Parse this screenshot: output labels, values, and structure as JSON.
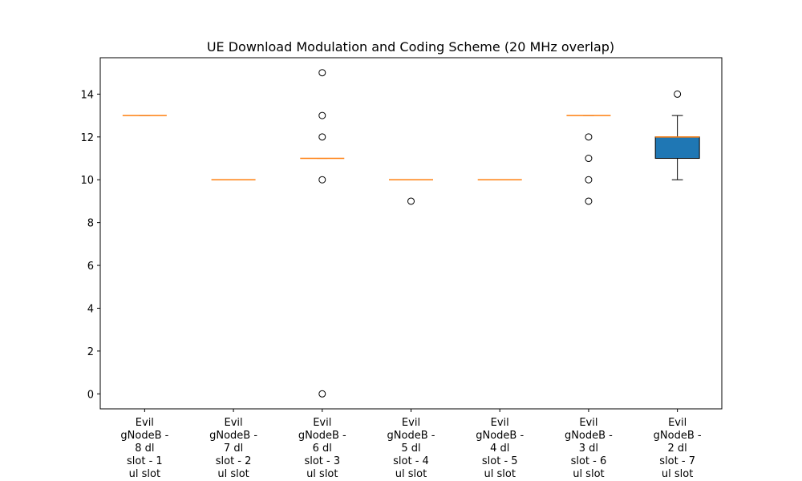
{
  "chart_data": {
    "type": "box",
    "title": "UE Download Modulation and Coding Scheme (20 MHz overlap)",
    "xlabel": "",
    "ylabel": "",
    "ylim": [
      -0.7,
      15.7
    ],
    "yticks": [
      0,
      2,
      4,
      6,
      8,
      10,
      12,
      14
    ],
    "grid": false,
    "box_color": "#1f77b4",
    "median_color": "#ff7f0e",
    "categories": [
      [
        "Evil",
        "gNodeB -",
        "8 dl",
        "slot - 1",
        "ul slot"
      ],
      [
        "Evil",
        "gNodeB -",
        "7 dl",
        "slot - 2",
        "ul slot"
      ],
      [
        "Evil",
        "gNodeB -",
        "6 dl",
        "slot - 3",
        "ul slot"
      ],
      [
        "Evil",
        "gNodeB -",
        "5 dl",
        "slot - 4",
        "ul slot"
      ],
      [
        "Evil",
        "gNodeB -",
        "4 dl",
        "slot - 5",
        "ul slot"
      ],
      [
        "Evil",
        "gNodeB -",
        "3 dl",
        "slot - 6",
        "ul slot"
      ],
      [
        "Evil",
        "gNodeB -",
        "2 dl",
        "slot - 7",
        "ul slot"
      ]
    ],
    "boxes": [
      {
        "q1": 13,
        "median": 13,
        "q3": 13,
        "whisker_low": 13,
        "whisker_high": 13,
        "fliers": []
      },
      {
        "q1": 10,
        "median": 10,
        "q3": 10,
        "whisker_low": 10,
        "whisker_high": 10,
        "fliers": []
      },
      {
        "q1": 11,
        "median": 11,
        "q3": 11,
        "whisker_low": 11,
        "whisker_high": 11,
        "fliers": [
          0,
          10,
          12,
          13,
          15
        ]
      },
      {
        "q1": 10,
        "median": 10,
        "q3": 10,
        "whisker_low": 10,
        "whisker_high": 10,
        "fliers": [
          9
        ]
      },
      {
        "q1": 10,
        "median": 10,
        "q3": 10,
        "whisker_low": 10,
        "whisker_high": 10,
        "fliers": []
      },
      {
        "q1": 13,
        "median": 13,
        "q3": 13,
        "whisker_low": 13,
        "whisker_high": 13,
        "fliers": [
          9,
          10,
          11,
          12
        ]
      },
      {
        "q1": 11,
        "median": 12,
        "q3": 12,
        "whisker_low": 10,
        "whisker_high": 13,
        "fliers": [
          14
        ]
      }
    ]
  }
}
